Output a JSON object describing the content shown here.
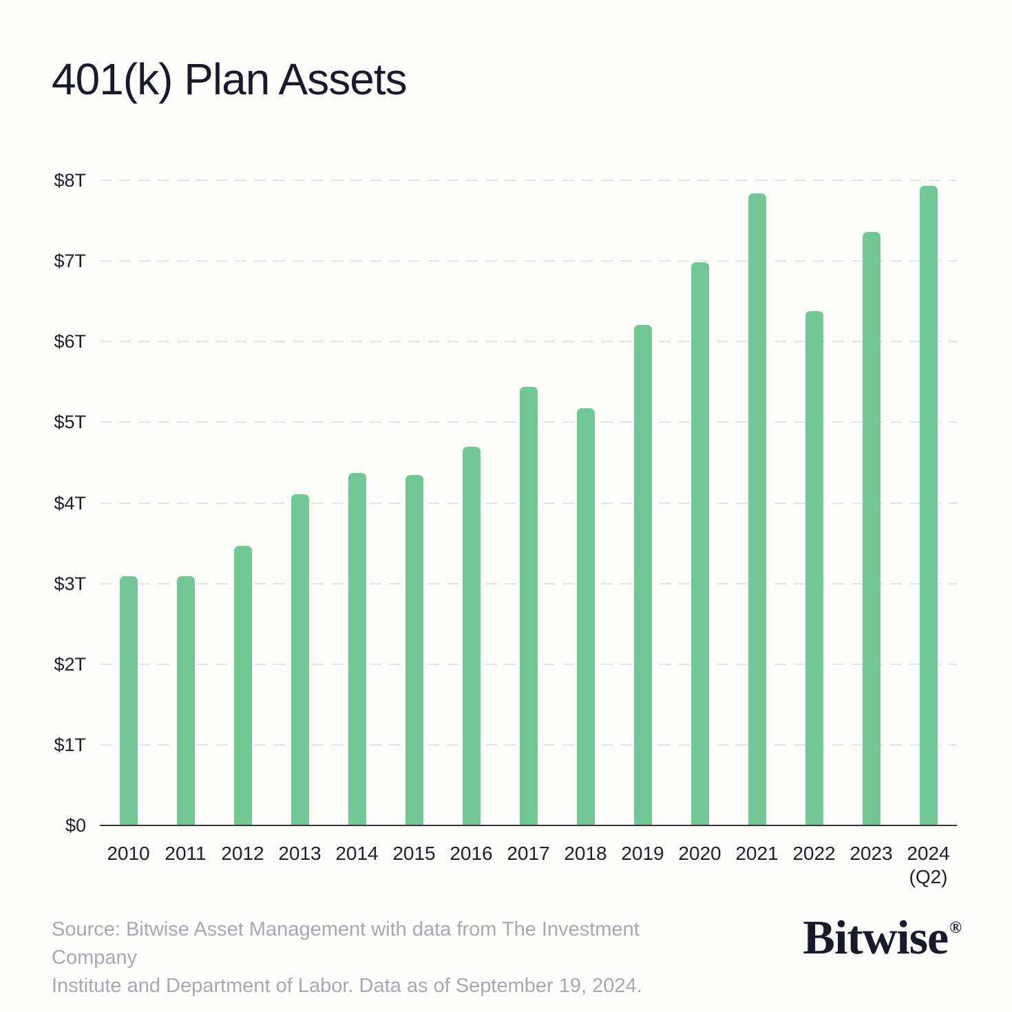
{
  "title": "401(k) Plan Assets",
  "source": {
    "line1": "Source: Bitwise Asset Management with data from The Investment Company",
    "line2": "Institute and Department of Labor. Data as of September 19, 2024."
  },
  "logo": {
    "text": "Bitwise",
    "registered": "®"
  },
  "colors": {
    "bar": "#72c794",
    "gridline": "#e4e4e7",
    "axis_line": "#35353d",
    "text_dark": "#1e2029",
    "title": "#191b2a",
    "source_gray": "#a8a8b0",
    "background": "#fdfdfc"
  },
  "chart_data": {
    "type": "bar",
    "title": "401(k) Plan Assets",
    "unit": "USD trillions",
    "categories": [
      "2010",
      "2011",
      "2012",
      "2013",
      "2014",
      "2015",
      "2016",
      "2017",
      "2018",
      "2019",
      "2020",
      "2021",
      "2022",
      "2023",
      "2024"
    ],
    "category_sublabels": [
      "",
      "",
      "",
      "",
      "",
      "",
      "",
      "",
      "",
      "",
      "",
      "",
      "",
      "",
      "(Q2)"
    ],
    "values": [
      3.09,
      3.09,
      3.47,
      4.11,
      4.37,
      4.35,
      4.7,
      5.44,
      5.17,
      6.21,
      6.98,
      7.84,
      6.38,
      7.36,
      7.93
    ],
    "xlabel": "",
    "ylabel": "",
    "ylim": [
      0,
      8
    ],
    "yticks": [
      {
        "value": 0,
        "label": "$0"
      },
      {
        "value": 1,
        "label": "$1T"
      },
      {
        "value": 2,
        "label": "$2T"
      },
      {
        "value": 3,
        "label": "$3T"
      },
      {
        "value": 4,
        "label": "$4T"
      },
      {
        "value": 5,
        "label": "$5T"
      },
      {
        "value": 6,
        "label": "$6T"
      },
      {
        "value": 7,
        "label": "$7T"
      },
      {
        "value": 8,
        "label": "$8T"
      }
    ],
    "grid": "horizontal-dashed",
    "gridline_values": [
      1,
      2,
      3,
      4,
      5,
      6,
      7,
      8
    ],
    "legend_position": "none",
    "bar_color": "#72c794"
  }
}
